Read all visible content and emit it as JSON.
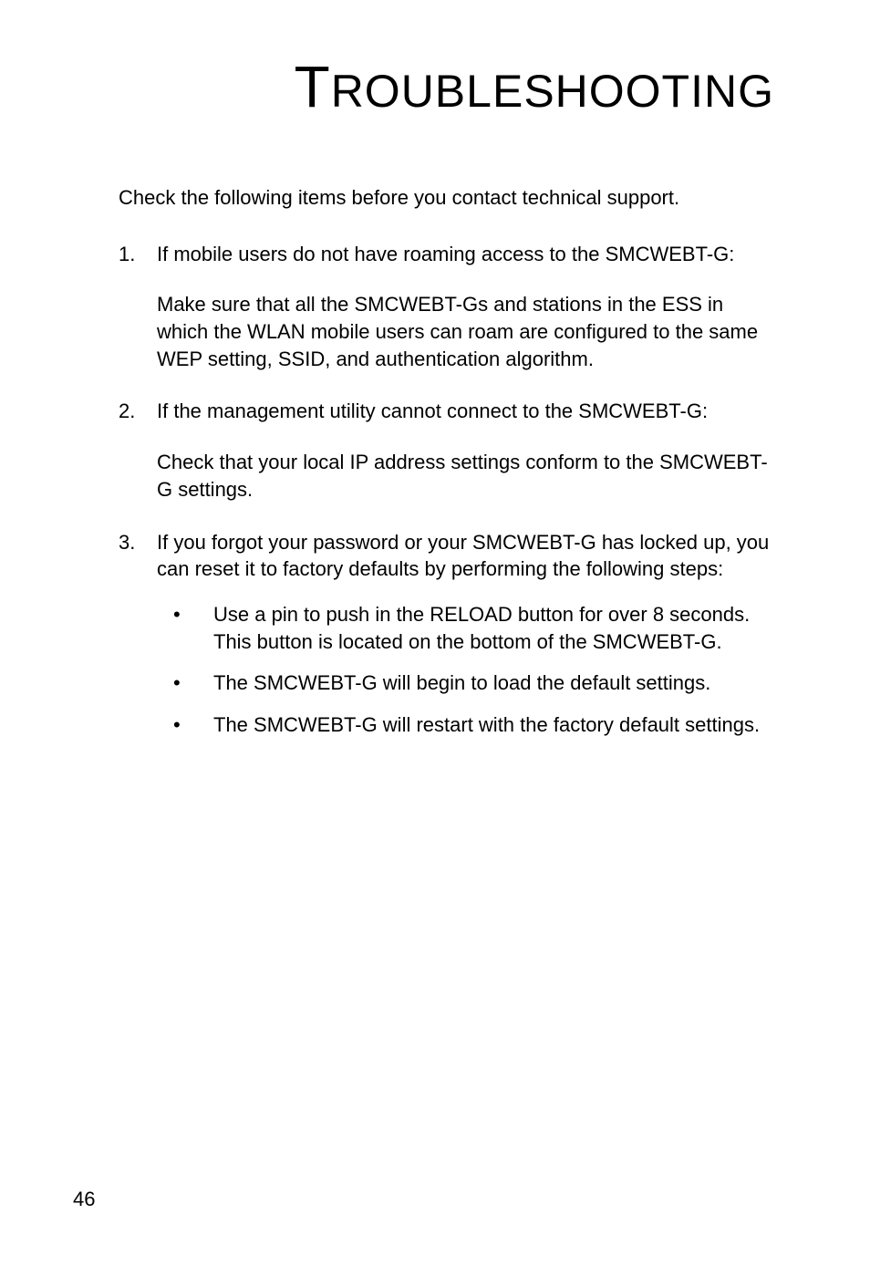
{
  "title": {
    "dropcap": "T",
    "rest": "ROUBLESHOOTING"
  },
  "intro": "Check the following items before you contact technical support.",
  "items": [
    {
      "num": "1.",
      "lead": "If mobile users do not have roaming access to the SMCWEBT-G:",
      "sub": "Make sure that all the SMCWEBT-Gs and stations in the ESS in which the WLAN mobile users can roam are configured to the same WEP setting, SSID, and authentication algorithm."
    },
    {
      "num": "2.",
      "lead": "If the management utility cannot connect to the SMCWEBT-G:",
      "sub": "Check that your local IP address settings conform to the SMCWEBT-G settings."
    },
    {
      "num": "3.",
      "lead": "If you forgot your password or your SMCWEBT-G has locked up, you can reset it to factory defaults by performing the following steps:",
      "bullets": [
        "Use a pin to push in the RELOAD button for over 8 seconds. This button is located on the bottom of the SMCWEBT-G.",
        "The SMCWEBT-G will begin to load the default settings.",
        "The SMCWEBT-G will restart with the factory default settings."
      ]
    }
  ],
  "pageNumber": "46"
}
